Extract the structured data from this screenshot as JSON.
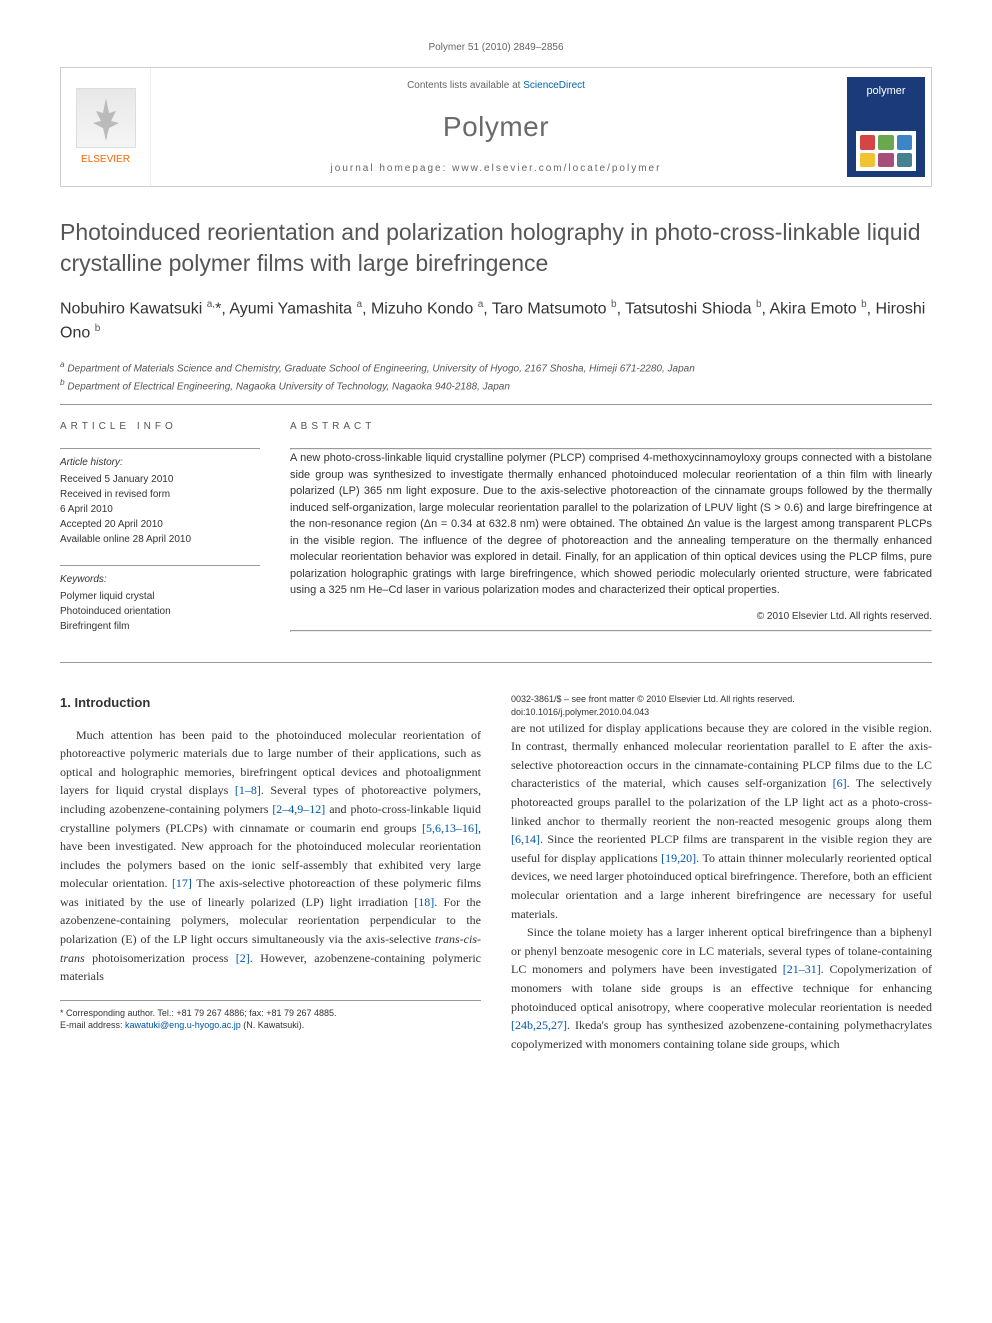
{
  "header": {
    "citation": "Polymer 51 (2010) 2849–2856",
    "contents_prefix": "Contents lists available at ",
    "contents_link": "ScienceDirect",
    "journal": "Polymer",
    "homepage_label": "journal homepage: www.elsevier.com/locate/polymer",
    "publisher": "ELSEVIER",
    "cover_label": "polymer",
    "cover_dot_colors": [
      "#d64545",
      "#6aa84f",
      "#3d85c6",
      "#f1c232",
      "#a64d79",
      "#45818e"
    ]
  },
  "title": "Photoinduced reorientation and polarization holography in photo-cross-linkable liquid crystalline polymer films with large birefringence",
  "authors_html": "Nobuhiro Kawatsuki <sup>a,</sup>*, Ayumi Yamashita <sup>a</sup>, Mizuho Kondo <sup>a</sup>, Taro Matsumoto <sup>b</sup>, Tatsutoshi Shioda <sup>b</sup>, Akira Emoto <sup>b</sup>, Hiroshi Ono <sup>b</sup>",
  "affiliations": {
    "a": "Department of Materials Science and Chemistry, Graduate School of Engineering, University of Hyogo, 2167 Shosha, Himeji 671-2280, Japan",
    "b": "Department of Electrical Engineering, Nagaoka University of Technology, Nagaoka 940-2188, Japan"
  },
  "article_info": {
    "label": "ARTICLE INFO",
    "history_title": "Article history:",
    "history": [
      "Received 5 January 2010",
      "Received in revised form",
      "6 April 2010",
      "Accepted 20 April 2010",
      "Available online 28 April 2010"
    ],
    "keywords_title": "Keywords:",
    "keywords": [
      "Polymer liquid crystal",
      "Photoinduced orientation",
      "Birefringent film"
    ]
  },
  "abstract": {
    "label": "ABSTRACT",
    "text": "A new photo-cross-linkable liquid crystalline polymer (PLCP) comprised 4-methoxycinnamoyloxy groups connected with a bistolane side group was synthesized to investigate thermally enhanced photoinduced molecular reorientation of a thin film with linearly polarized (LP) 365 nm light exposure. Due to the axis-selective photoreaction of the cinnamate groups followed by the thermally induced self-organization, large molecular reorientation parallel to the polarization of LPUV light (S > 0.6) and large birefringence at the non-resonance region (Δn = 0.34 at 632.8 nm) were obtained. The obtained Δn value is the largest among transparent PLCPs in the visible region. The influence of the degree of photoreaction and the annealing temperature on the thermally enhanced molecular reorientation behavior was explored in detail. Finally, for an application of thin optical devices using the PLCP films, pure polarization holographic gratings with large birefringence, which showed periodic molecularly oriented structure, were fabricated using a 325 nm He–Cd laser in various polarization modes and characterized their optical properties.",
    "copyright": "© 2010 Elsevier Ltd. All rights reserved."
  },
  "body": {
    "section_title": "1. Introduction",
    "para1": "Much attention has been paid to the photoinduced molecular reorientation of photoreactive polymeric materials due to large number of their applications, such as optical and holographic memories, birefringent optical devices and photoalignment layers for liquid crystal displays [1–8]. Several types of photoreactive polymers, including azobenzene-containing polymers [2–4,9–12] and photo-cross-linkable liquid crystalline polymers (PLCPs) with cinnamate or coumarin end groups [5,6,13–16], have been investigated. New approach for the photoinduced molecular reorientation includes the polymers based on the ionic self-assembly that exhibited very large molecular orientation. [17] The axis-selective photoreaction of these polymeric films was initiated by the use of linearly polarized (LP) light irradiation [18]. For the azobenzene-containing polymers, molecular reorientation perpendicular to the polarization (E) of the LP light occurs simultaneously via the axis-selective trans-cis-trans photoisomerization process [2]. However, azobenzene-containing polymeric materials",
    "para1_cont": "are not utilized for display applications because they are colored in the visible region. In contrast, thermally enhanced molecular reorientation parallel to E after the axis-selective photoreaction occurs in the cinnamate-containing PLCP films due to the LC characteristics of the material, which causes self-organization [6]. The selectively photoreacted groups parallel to the polarization of the LP light act as a photo-cross-linked anchor to thermally reorient the non-reacted mesogenic groups along them [6,14]. Since the reoriented PLCP films are transparent in the visible region they are useful for display applications [19,20]. To attain thinner molecularly reoriented optical devices, we need larger photoinduced optical birefringence. Therefore, both an efficient molecular orientation and a large inherent birefringence are necessary for useful materials.",
    "para2": "Since the tolane moiety has a larger inherent optical birefringence than a biphenyl or phenyl benzoate mesogenic core in LC materials, several types of tolane-containing LC monomers and polymers have been investigated [21–31]. Copolymerization of monomers with tolane side groups is an effective technique for enhancing photoinduced optical anisotropy, where cooperative molecular reorientation is needed [24b,25,27]. Ikeda's group has synthesized azobenzene-containing polymethacrylates copolymerized with monomers containing tolane side groups, which"
  },
  "footer": {
    "corresponding": "* Corresponding author. Tel.: +81 79 267 4886; fax: +81 79 267 4885.",
    "email_label": "E-mail address: ",
    "email": "kawatuki@eng.u-hyogo.ac.jp",
    "email_suffix": " (N. Kawatsuki).",
    "issn": "0032-3861/$ – see front matter © 2010 Elsevier Ltd. All rights reserved.",
    "doi": "doi:10.1016/j.polymer.2010.04.043"
  },
  "colors": {
    "link": "#0055aa",
    "banner_blue": "#1a3a7a",
    "elsevier_orange": "#ff6600",
    "rule": "#999999"
  }
}
